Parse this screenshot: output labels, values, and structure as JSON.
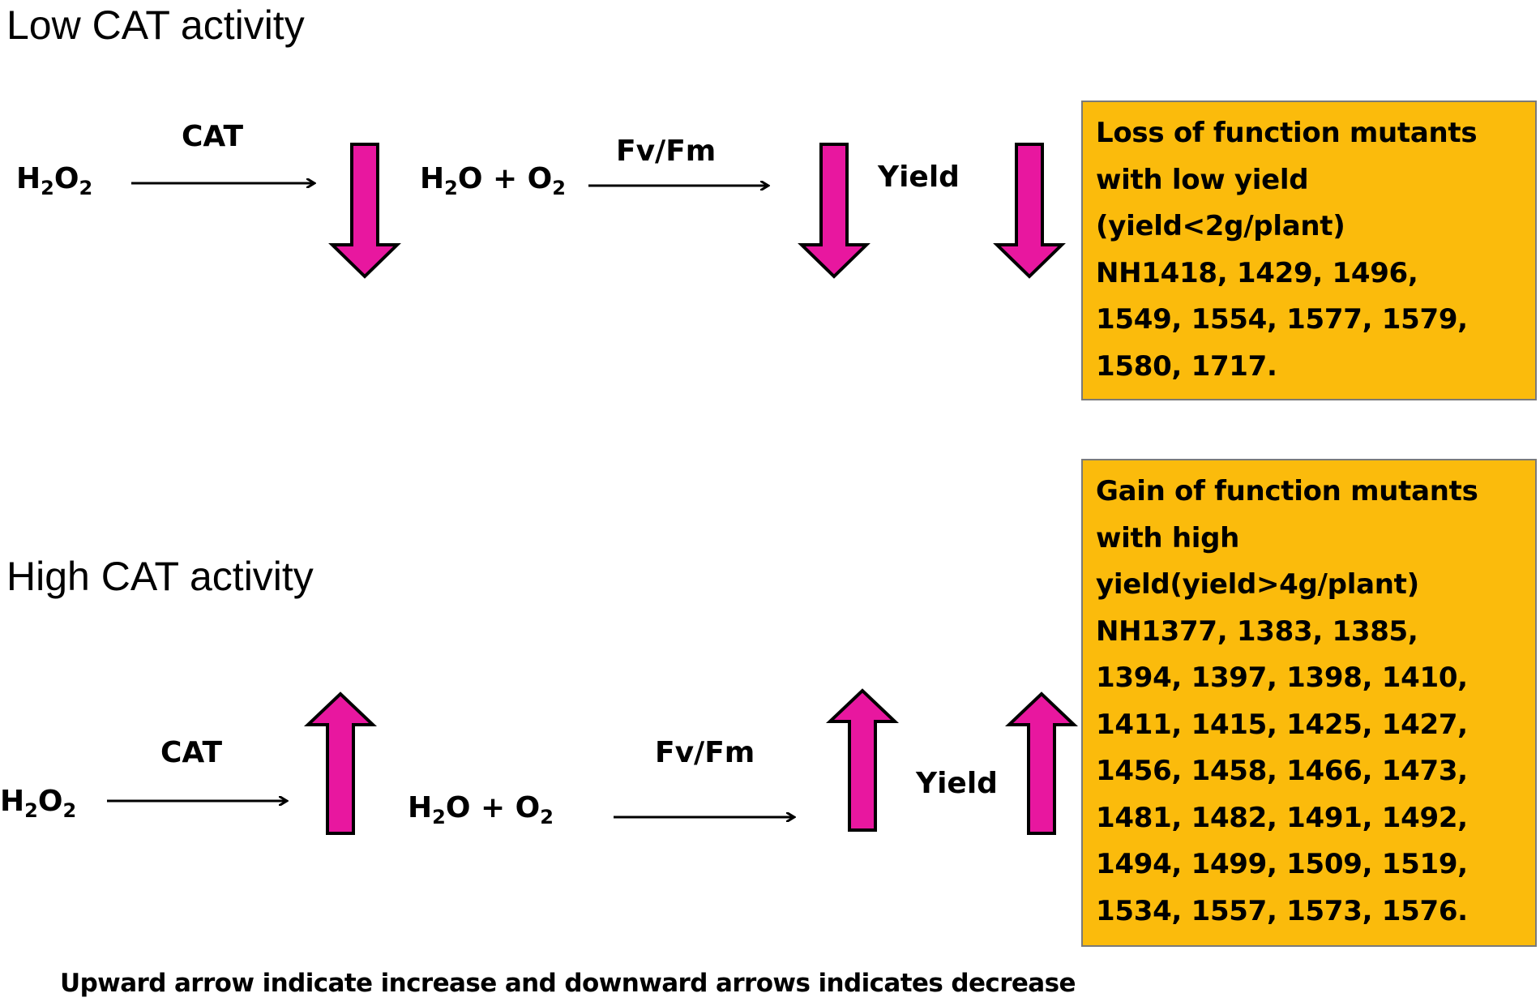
{
  "colors": {
    "arrow_fill": "#e8179f",
    "box_fill": "#fbbb0c",
    "box_border": "#7a7a7a"
  },
  "low": {
    "heading": "Low CAT activity",
    "substrate": {
      "base": "H",
      "sub1": "2",
      "mid": "O",
      "sub2": "2"
    },
    "enzyme_label": "CAT",
    "product": {
      "part1": "H",
      "sub1": "2",
      "part2": "O + O",
      "sub2": "2"
    },
    "ratio_label": "Fv/Fm",
    "yield_label": "Yield",
    "box_lines": [
      "Loss of function mutants",
      "with low yield",
      "(yield<2g/plant)",
      "NH1418, 1429, 1496,",
      "1549, 1554, 1577, 1579,",
      "1580, 1717."
    ]
  },
  "high": {
    "heading": "High CAT activity",
    "substrate": {
      "base": "H",
      "sub1": "2",
      "mid": "O",
      "sub2": "2"
    },
    "enzyme_label": "CAT",
    "product": {
      "part1": "H",
      "sub1": "2",
      "part2": "O + O",
      "sub2": "2"
    },
    "ratio_label": "Fv/Fm",
    "yield_label": "Yield",
    "box_lines": [
      "Gain of function mutants",
      "with high",
      "yield(yield>4g/plant)",
      "NH1377, 1383, 1385,",
      "1394, 1397, 1398, 1410,",
      "1411, 1415, 1425, 1427,",
      "1456, 1458, 1466, 1473,",
      "1481, 1482, 1491, 1492,",
      "1494, 1499, 1509, 1519,",
      "1534, 1557, 1573, 1576."
    ]
  },
  "footnote": "Upward arrow indicate increase and downward arrows indicates decrease"
}
